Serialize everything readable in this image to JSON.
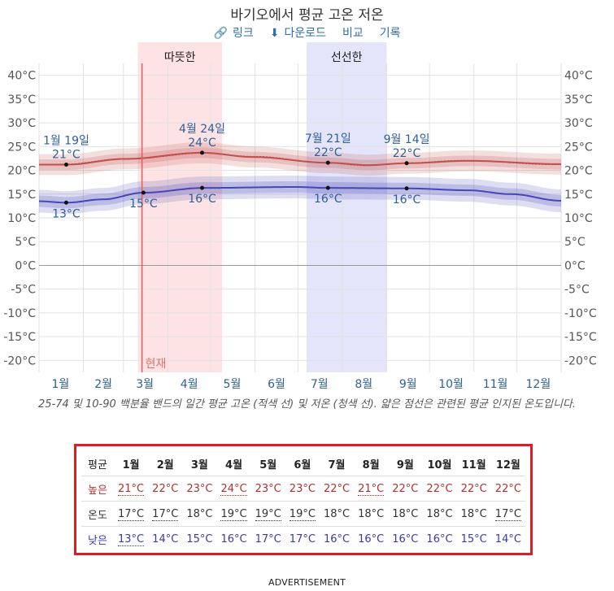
{
  "title": "바기오에서 평균 고온 저온",
  "links": [
    {
      "icon": "link-icon",
      "glyph": "🔗",
      "label": "링크"
    },
    {
      "icon": "download-icon",
      "glyph": "⬇",
      "label": "다운로드"
    },
    {
      "icon": "",
      "glyph": "",
      "label": "비교"
    },
    {
      "icon": "",
      "glyph": "",
      "label": "기록"
    }
  ],
  "caption": "25-74 및 10-90 백분율 밴드의 일간 평균 고온 (적색 선) 및 저온 (청색 선). 얇은 점선은 관련된 평균 인지된 온도입니다.",
  "table": {
    "header_label": "평균",
    "months": [
      "1월",
      "2월",
      "3월",
      "4월",
      "5월",
      "6월",
      "7월",
      "8월",
      "9월",
      "10월",
      "11월",
      "12월"
    ],
    "rows": [
      {
        "label": "높은",
        "cls": "hi",
        "values": [
          "21°C",
          "22°C",
          "23°C",
          "24°C",
          "23°C",
          "23°C",
          "22°C",
          "21°C",
          "22°C",
          "22°C",
          "22°C",
          "22°C"
        ],
        "underline": [
          true,
          false,
          false,
          true,
          false,
          false,
          false,
          true,
          false,
          false,
          false,
          false
        ]
      },
      {
        "label": "온도",
        "cls": "mid",
        "values": [
          "17°C",
          "17°C",
          "18°C",
          "19°C",
          "19°C",
          "19°C",
          "18°C",
          "18°C",
          "18°C",
          "18°C",
          "18°C",
          "17°C"
        ],
        "underline": [
          true,
          true,
          false,
          true,
          true,
          true,
          false,
          false,
          false,
          false,
          false,
          true
        ]
      },
      {
        "label": "낮은",
        "cls": "lo",
        "values": [
          "13°C",
          "14°C",
          "15°C",
          "16°C",
          "17°C",
          "17°C",
          "16°C",
          "16°C",
          "16°C",
          "16°C",
          "15°C",
          "14°C"
        ],
        "underline": [
          true,
          false,
          false,
          false,
          false,
          false,
          false,
          false,
          false,
          false,
          false,
          false
        ]
      }
    ]
  },
  "advertisement": "ADVERTISEMENT",
  "chart_data": {
    "type": "line",
    "ylim": [
      -22.5,
      42.5
    ],
    "yticks": [
      40,
      35,
      30,
      25,
      20,
      15,
      10,
      5,
      0,
      -5,
      -10,
      -15,
      -20
    ],
    "tick_unit": "°C",
    "x_unit": "day of year",
    "month_labels": [
      "1월",
      "2월",
      "3월",
      "4월",
      "5월",
      "6월",
      "7월",
      "8월",
      "9월",
      "10월",
      "11월",
      "12월"
    ],
    "seasons": [
      {
        "label": "따뜻한",
        "start": 69,
        "end": 128,
        "color": "#fde3e3"
      },
      {
        "label": "선선한",
        "start": 187,
        "end": 243,
        "color": "#e4e4fb"
      }
    ],
    "current": {
      "label": "현재",
      "day": 72
    },
    "series": [
      {
        "kind": "high",
        "color": "#c0504d",
        "x": [
          0,
          19,
          60,
          114,
          150,
          202,
          230,
          257,
          300,
          365
        ],
        "y": [
          21.2,
          21.2,
          22.4,
          23.7,
          22.8,
          21.6,
          21.1,
          21.5,
          22,
          21.3
        ],
        "band25": 1.1,
        "band10": 2.2
      },
      {
        "kind": "low",
        "color": "#4646b8",
        "x": [
          0,
          19,
          45,
          73,
          115,
          180,
          202,
          257,
          300,
          330,
          365
        ],
        "y": [
          13.5,
          13.2,
          13.9,
          15.3,
          16.3,
          16.5,
          16.3,
          16.2,
          15.8,
          15,
          13.6
        ],
        "band25": 1.2,
        "band10": 2.4
      }
    ],
    "markers": [
      {
        "series": 0,
        "day": 19,
        "date": "1월 19일",
        "value": "21°C",
        "pos": "above",
        "y": 21.2
      },
      {
        "series": 0,
        "day": 114,
        "date": "4월 24일",
        "value": "24°C",
        "pos": "above",
        "y": 23.7
      },
      {
        "series": 0,
        "day": 202,
        "date": "7월 21일",
        "value": "22°C",
        "pos": "above",
        "y": 21.6
      },
      {
        "series": 0,
        "day": 257,
        "date": "9월 14일",
        "value": "22°C",
        "pos": "above",
        "y": 21.5
      },
      {
        "series": 1,
        "day": 19,
        "date": "",
        "value": "13°C",
        "pos": "below",
        "y": 13.2
      },
      {
        "series": 1,
        "day": 73,
        "date": "",
        "value": "15°C",
        "pos": "below",
        "y": 15.3
      },
      {
        "series": 1,
        "day": 114,
        "date": "",
        "value": "16°C",
        "pos": "below",
        "y": 16.3
      },
      {
        "series": 1,
        "day": 202,
        "date": "",
        "value": "16°C",
        "pos": "below",
        "y": 16.3
      },
      {
        "series": 1,
        "day": 257,
        "date": "",
        "value": "16°C",
        "pos": "below",
        "y": 16.2
      }
    ]
  }
}
